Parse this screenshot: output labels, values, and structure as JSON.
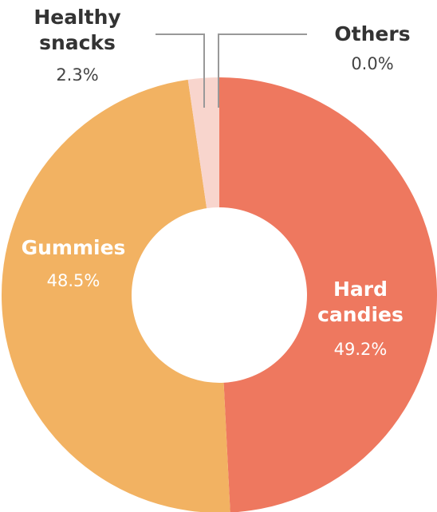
{
  "chart_data": {
    "type": "donut",
    "categories": [
      "Hard candies",
      "Gummies",
      "Healthy snacks",
      "Others"
    ],
    "values": [
      49.2,
      48.5,
      2.3,
      0.0
    ],
    "value_labels": [
      "49.2%",
      "48.5%",
      "2.3%",
      "0.0%"
    ],
    "colors": [
      "#ee785f",
      "#f2b262",
      "#f8d5cd",
      "#d9d9d9"
    ]
  }
}
